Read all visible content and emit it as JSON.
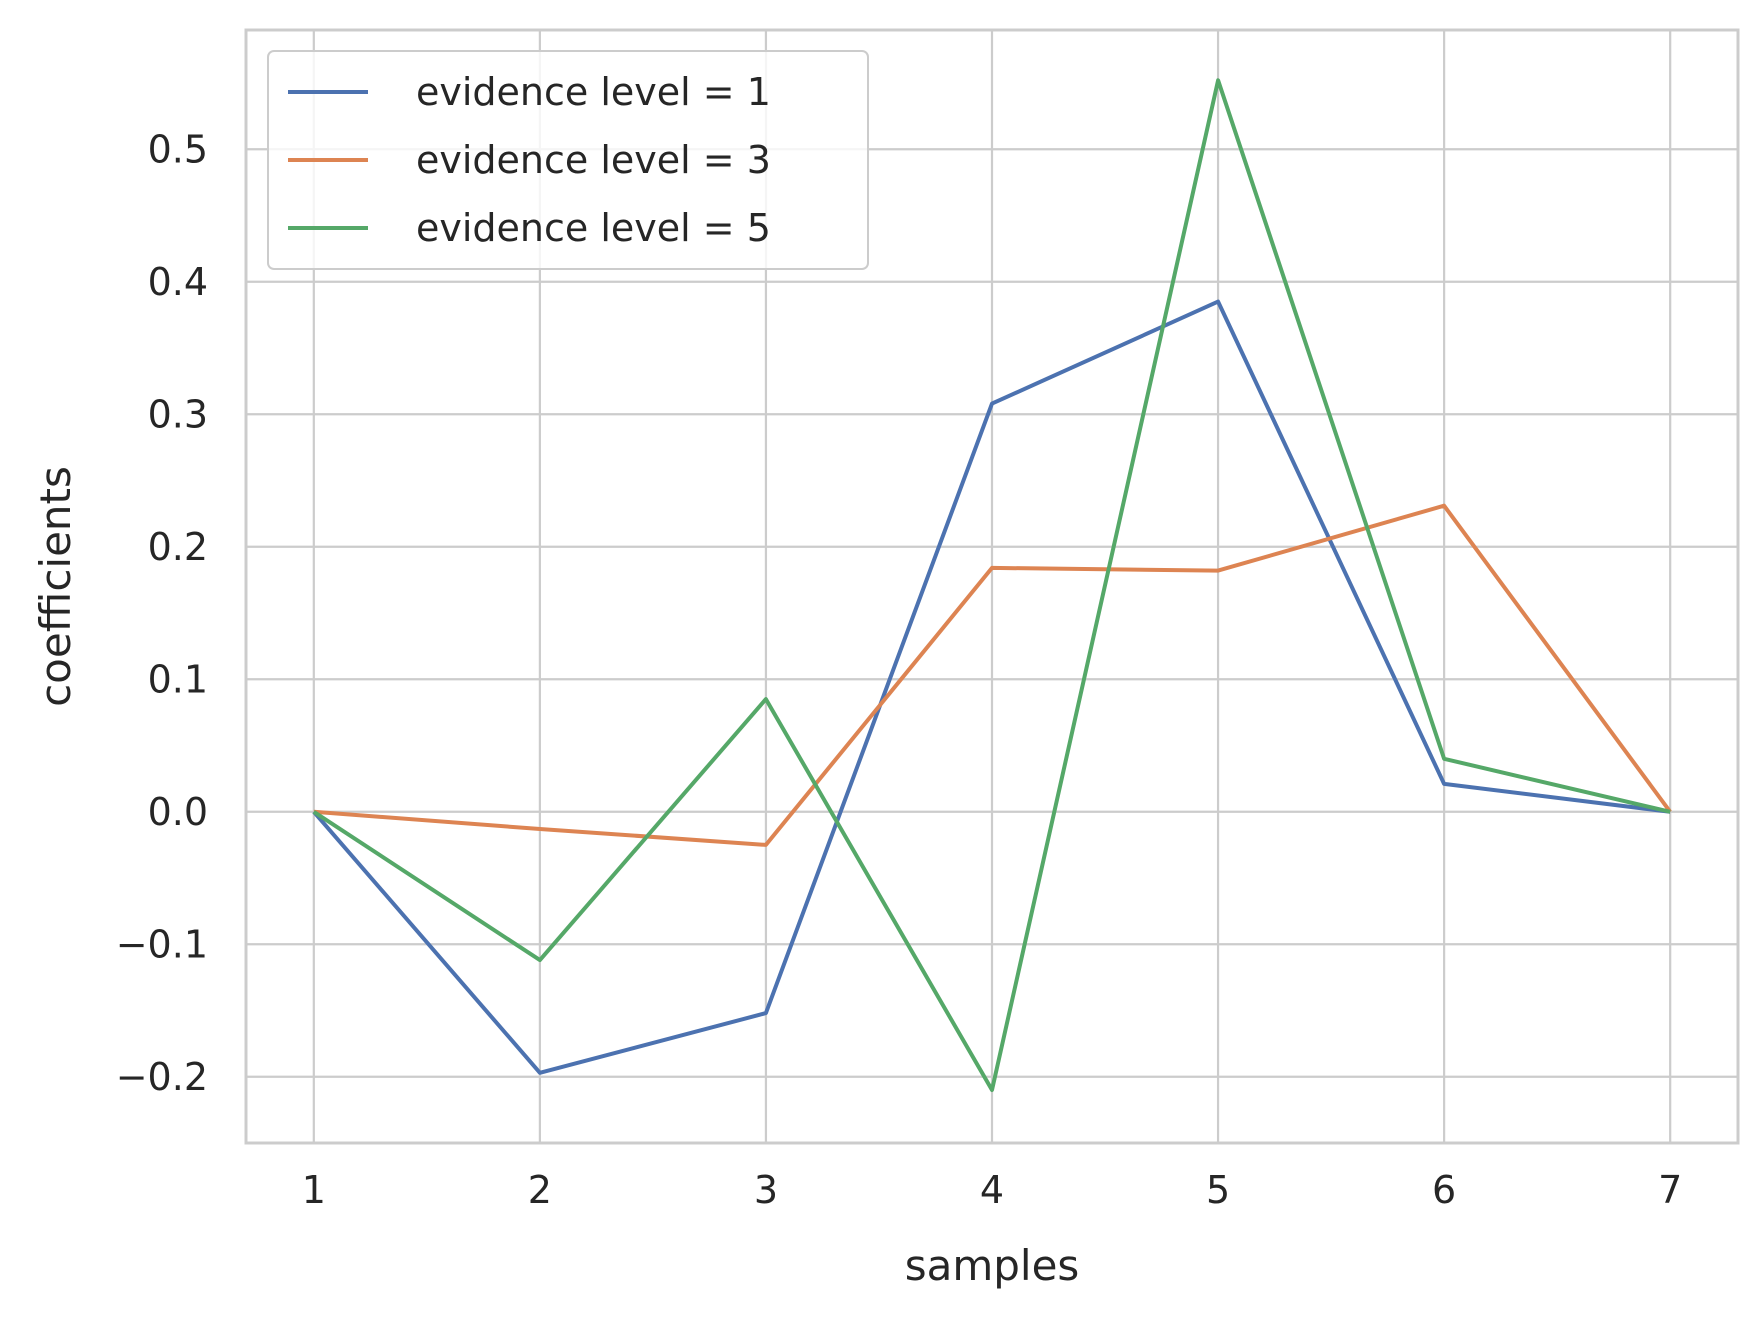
{
  "chart_data": {
    "type": "line",
    "xlabel": "samples",
    "ylabel": "coefficients",
    "x": [
      1,
      2,
      3,
      4,
      5,
      6,
      7
    ],
    "xticks": [
      "1",
      "2",
      "3",
      "4",
      "5",
      "6",
      "7"
    ],
    "yticks": [
      -0.2,
      -0.1,
      0.0,
      0.1,
      0.2,
      0.3,
      0.4,
      0.5
    ],
    "ytick_labels": [
      "−0.2",
      "−0.1",
      "0.0",
      "0.1",
      "0.2",
      "0.3",
      "0.4",
      "0.5"
    ],
    "xlim": [
      0.7,
      7.3
    ],
    "ylim": [
      -0.25,
      0.59
    ],
    "grid": true,
    "legend_position": "top-left",
    "series": [
      {
        "name": "evidence level = 1",
        "color": "#4c72b0",
        "values": [
          0.0,
          -0.197,
          -0.152,
          0.308,
          0.385,
          0.021,
          0.0
        ]
      },
      {
        "name": "evidence level = 3",
        "color": "#dd8452",
        "values": [
          0.0,
          -0.013,
          -0.025,
          0.184,
          0.182,
          0.231,
          0.0
        ]
      },
      {
        "name": "evidence level = 5",
        "color": "#55a868",
        "values": [
          0.0,
          -0.112,
          0.085,
          -0.21,
          0.552,
          0.04,
          0.0
        ]
      }
    ]
  }
}
